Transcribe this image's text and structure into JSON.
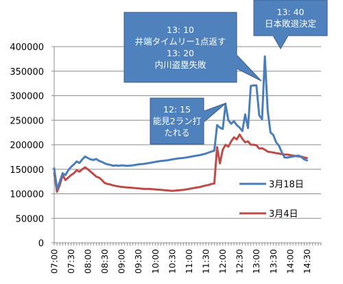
{
  "chart_data": {
    "type": "line",
    "title": "",
    "xlabel": "",
    "ylabel": "",
    "ylim": [
      0,
      400000
    ],
    "y_ticks": [
      0,
      50000,
      100000,
      150000,
      200000,
      250000,
      300000,
      350000,
      400000
    ],
    "y_tick_labels": [
      "0",
      "50000",
      "100000",
      "150000",
      "200000",
      "250000",
      "300000",
      "350000",
      "400000"
    ],
    "x_range": [
      "07:00",
      "14:55"
    ],
    "x_tick_labels": [
      "07:00",
      "07:30",
      "08:00",
      "08:30",
      "09:00",
      "09:30",
      "10:00",
      "10:30",
      "11:00",
      "11:30",
      "12:00",
      "12:30",
      "13:00",
      "13:30",
      "14:00",
      "14:30"
    ],
    "grid": "horizontal",
    "legend_position": "right",
    "series": [
      {
        "name": "3月18日",
        "color": "#4a7ebb",
        "points": [
          [
            "07:00",
            152000
          ],
          [
            "07:05",
            110000
          ],
          [
            "07:10",
            125000
          ],
          [
            "07:15",
            142000
          ],
          [
            "07:20",
            138000
          ],
          [
            "07:25",
            148000
          ],
          [
            "07:30",
            155000
          ],
          [
            "07:35",
            160000
          ],
          [
            "07:40",
            166000
          ],
          [
            "07:45",
            163000
          ],
          [
            "07:50",
            170000
          ],
          [
            "07:55",
            176000
          ],
          [
            "08:00",
            173000
          ],
          [
            "08:05",
            170000
          ],
          [
            "08:10",
            169000
          ],
          [
            "08:15",
            171000
          ],
          [
            "08:20",
            167000
          ],
          [
            "08:25",
            165000
          ],
          [
            "08:30",
            162000
          ],
          [
            "08:35",
            160000
          ],
          [
            "08:40",
            159000
          ],
          [
            "08:45",
            157000
          ],
          [
            "08:50",
            158000
          ],
          [
            "08:55",
            157000
          ],
          [
            "09:00",
            158000
          ],
          [
            "09:10",
            157000
          ],
          [
            "09:20",
            158000
          ],
          [
            "09:30",
            160000
          ],
          [
            "09:40",
            161000
          ],
          [
            "09:50",
            163000
          ],
          [
            "10:00",
            165000
          ],
          [
            "10:10",
            167000
          ],
          [
            "10:20",
            168000
          ],
          [
            "10:30",
            170000
          ],
          [
            "10:40",
            172000
          ],
          [
            "10:50",
            173000
          ],
          [
            "11:00",
            175000
          ],
          [
            "11:10",
            177000
          ],
          [
            "11:20",
            179000
          ],
          [
            "11:30",
            182000
          ],
          [
            "11:35",
            184000
          ],
          [
            "11:40",
            186000
          ],
          [
            "11:45",
            188000
          ],
          [
            "11:50",
            240000
          ],
          [
            "11:55",
            235000
          ],
          [
            "12:00",
            232000
          ],
          [
            "12:05",
            282000
          ],
          [
            "12:10",
            250000
          ],
          [
            "12:15",
            243000
          ],
          [
            "12:20",
            248000
          ],
          [
            "12:25",
            240000
          ],
          [
            "12:30",
            235000
          ],
          [
            "12:35",
            228000
          ],
          [
            "12:40",
            262000
          ],
          [
            "12:45",
            234000
          ],
          [
            "12:50",
            320000
          ],
          [
            "12:55",
            321000
          ],
          [
            "13:00",
            321000
          ],
          [
            "13:05",
            260000
          ],
          [
            "13:10",
            252000
          ],
          [
            "13:15",
            380000
          ],
          [
            "13:20",
            270000
          ],
          [
            "13:25",
            225000
          ],
          [
            "13:30",
            220000
          ],
          [
            "13:35",
            205000
          ],
          [
            "13:40",
            198000
          ],
          [
            "13:45",
            185000
          ],
          [
            "13:50",
            174000
          ],
          [
            "13:55",
            174000
          ],
          [
            "14:00",
            175000
          ],
          [
            "14:05",
            176000
          ],
          [
            "14:10",
            177000
          ],
          [
            "14:15",
            178000
          ],
          [
            "14:20",
            175000
          ],
          [
            "14:25",
            170000
          ],
          [
            "14:30",
            168000
          ]
        ]
      },
      {
        "name": "3月4日",
        "color": "#be4b48",
        "points": [
          [
            "07:00",
            142000
          ],
          [
            "07:05",
            104000
          ],
          [
            "07:10",
            118000
          ],
          [
            "07:15",
            138000
          ],
          [
            "07:20",
            128000
          ],
          [
            "07:25",
            133000
          ],
          [
            "07:30",
            138000
          ],
          [
            "07:35",
            142000
          ],
          [
            "07:40",
            148000
          ],
          [
            "07:45",
            145000
          ],
          [
            "07:50",
            150000
          ],
          [
            "07:55",
            154000
          ],
          [
            "08:00",
            150000
          ],
          [
            "08:05",
            145000
          ],
          [
            "08:10",
            140000
          ],
          [
            "08:15",
            135000
          ],
          [
            "08:20",
            133000
          ],
          [
            "08:25",
            128000
          ],
          [
            "08:30",
            122000
          ],
          [
            "08:35",
            120000
          ],
          [
            "08:40",
            119000
          ],
          [
            "08:45",
            117000
          ],
          [
            "08:50",
            116000
          ],
          [
            "08:55",
            115000
          ],
          [
            "09:00",
            114000
          ],
          [
            "09:10",
            113000
          ],
          [
            "09:20",
            112000
          ],
          [
            "09:30",
            111000
          ],
          [
            "09:40",
            110000
          ],
          [
            "09:50",
            110000
          ],
          [
            "10:00",
            109000
          ],
          [
            "10:10",
            108000
          ],
          [
            "10:20",
            107000
          ],
          [
            "10:30",
            106000
          ],
          [
            "10:40",
            107000
          ],
          [
            "10:50",
            108000
          ],
          [
            "11:00",
            110000
          ],
          [
            "11:10",
            112000
          ],
          [
            "11:20",
            114000
          ],
          [
            "11:30",
            117000
          ],
          [
            "11:35",
            118000
          ],
          [
            "11:40",
            120000
          ],
          [
            "11:45",
            121000
          ],
          [
            "11:50",
            195000
          ],
          [
            "11:55",
            162000
          ],
          [
            "12:00",
            190000
          ],
          [
            "12:05",
            200000
          ],
          [
            "12:10",
            196000
          ],
          [
            "12:15",
            207000
          ],
          [
            "12:20",
            215000
          ],
          [
            "12:25",
            211000
          ],
          [
            "12:30",
            221000
          ],
          [
            "12:35",
            212000
          ],
          [
            "12:40",
            205000
          ],
          [
            "12:45",
            207000
          ],
          [
            "12:50",
            200000
          ],
          [
            "12:55",
            200000
          ],
          [
            "13:00",
            199000
          ],
          [
            "13:05",
            192000
          ],
          [
            "13:10",
            193000
          ],
          [
            "13:15",
            190000
          ],
          [
            "13:20",
            186000
          ],
          [
            "13:25",
            185000
          ],
          [
            "13:30",
            184000
          ],
          [
            "13:35",
            183000
          ],
          [
            "13:40",
            182000
          ],
          [
            "13:45",
            181000
          ],
          [
            "13:50",
            180000
          ],
          [
            "13:55",
            180000
          ],
          [
            "14:00",
            179000
          ],
          [
            "14:05",
            178000
          ],
          [
            "14:10",
            177000
          ],
          [
            "14:15",
            176000
          ],
          [
            "14:20",
            176000
          ],
          [
            "14:25",
            174000
          ],
          [
            "14:30",
            173000
          ]
        ]
      }
    ],
    "annotations": [
      {
        "text": "12: 15\n能見2ラン打\nたれる",
        "time": "12:15"
      },
      {
        "text": "13: 10\n井端タイムリー1点返す\n13: 20\n内川盗塁失敗",
        "time": "13:10"
      },
      {
        "text": "13: 40\n日本敗退決定",
        "time": "13:40"
      }
    ]
  }
}
